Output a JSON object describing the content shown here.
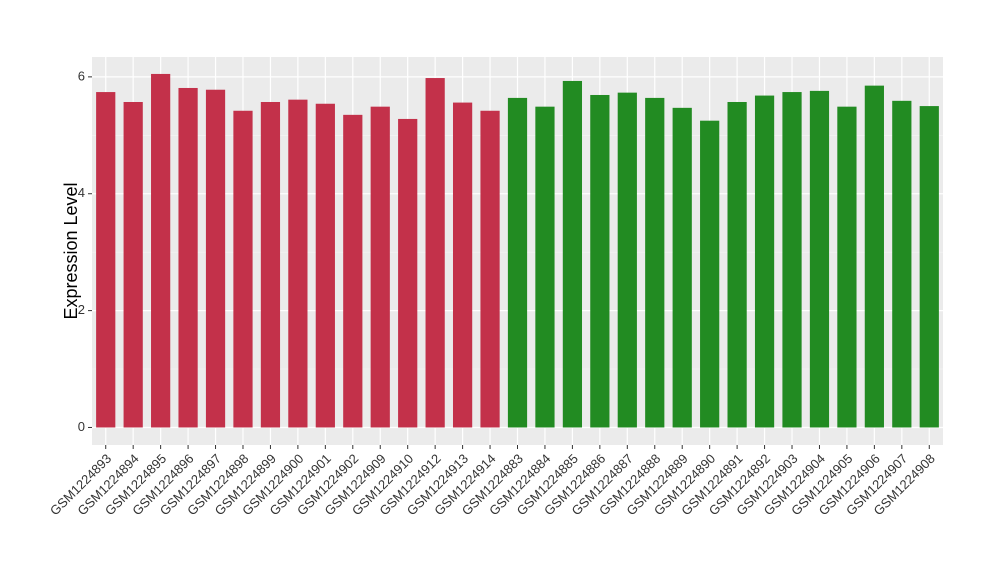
{
  "chart_data": {
    "type": "bar",
    "y_label": "Expression Level",
    "categories": [
      "GSM1224893",
      "GSM1224894",
      "GSM1224895",
      "GSM1224896",
      "GSM1224897",
      "GSM1224898",
      "GSM1224899",
      "GSM1224900",
      "GSM1224901",
      "GSM1224902",
      "GSM1224909",
      "GSM1224910",
      "GSM1224912",
      "GSM1224913",
      "GSM1224914",
      "GSM1224883",
      "GSM1224884",
      "GSM1224885",
      "GSM1224886",
      "GSM1224887",
      "GSM1224888",
      "GSM1224889",
      "GSM1224890",
      "GSM1224891",
      "GSM1224892",
      "GSM1224903",
      "GSM1224904",
      "GSM1224905",
      "GSM1224906",
      "GSM1224907",
      "GSM1224908"
    ],
    "values": [
      5.74,
      5.57,
      6.05,
      5.81,
      5.78,
      5.42,
      5.57,
      5.61,
      5.54,
      5.35,
      5.49,
      5.28,
      5.98,
      5.56,
      5.42,
      5.64,
      5.49,
      5.93,
      5.69,
      5.73,
      5.64,
      5.47,
      5.25,
      5.57,
      5.68,
      5.74,
      5.76,
      5.49,
      5.85,
      5.59,
      5.5
    ],
    "colors": [
      "#c3314a",
      "#c3314a",
      "#c3314a",
      "#c3314a",
      "#c3314a",
      "#c3314a",
      "#c3314a",
      "#c3314a",
      "#c3314a",
      "#c3314a",
      "#c3314a",
      "#c3314a",
      "#c3314a",
      "#c3314a",
      "#c3314a",
      "#228b22",
      "#228b22",
      "#228b22",
      "#228b22",
      "#228b22",
      "#228b22",
      "#228b22",
      "#228b22",
      "#228b22",
      "#228b22",
      "#228b22",
      "#228b22",
      "#228b22",
      "#228b22",
      "#228b22",
      "#228b22"
    ],
    "ylim": [
      -0.3,
      6.34
    ],
    "yticks": [
      0,
      2,
      4,
      6
    ],
    "grid": true
  }
}
